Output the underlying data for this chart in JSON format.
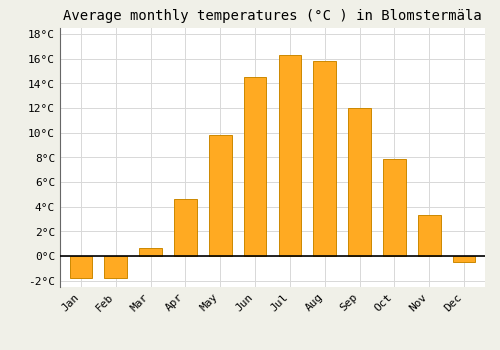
{
  "months": [
    "Jan",
    "Feb",
    "Mar",
    "Apr",
    "May",
    "Jun",
    "Jul",
    "Aug",
    "Sep",
    "Oct",
    "Nov",
    "Dec"
  ],
  "values": [
    -1.8,
    -1.8,
    0.7,
    4.6,
    9.8,
    14.5,
    16.3,
    15.8,
    12.0,
    7.9,
    3.3,
    -0.5
  ],
  "bar_color": "#FFAA22",
  "bar_edge_color": "#CC8800",
  "title": "Average monthly temperatures (°C ) in Blomstermäla",
  "ylim": [
    -2.5,
    18.5
  ],
  "yticks": [
    -2,
    0,
    2,
    4,
    6,
    8,
    10,
    12,
    14,
    16,
    18
  ],
  "background_color": "#f0f0e8",
  "plot_bg_color": "#ffffff",
  "grid_color": "#d8d8d8",
  "title_fontsize": 10,
  "tick_fontsize": 8,
  "font_family": "monospace"
}
